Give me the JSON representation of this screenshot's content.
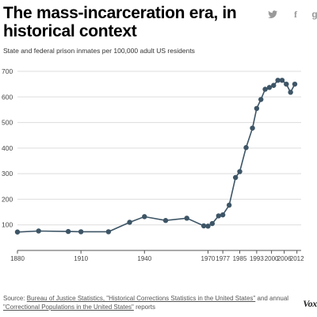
{
  "header": {
    "title": "The mass-incarceration era, in historical context",
    "subtitle": "State and federal prison inmates per 100,000 adult US residents"
  },
  "share": [
    {
      "name": "twitter-icon",
      "glyph": "twitter"
    },
    {
      "name": "facebook-icon",
      "glyph": "f"
    },
    {
      "name": "google-plus-icon",
      "glyph": "g"
    }
  ],
  "source": {
    "prefix": "Source: ",
    "link1": "Bureau of Justice Statistics, \"Historical Corrections Statistics in the United States\"",
    "middle": " and annual ",
    "link2": "\"Correctional Populations in the United States\"",
    "suffix": " reports"
  },
  "logo": "Vox",
  "colors": {
    "line": "#3d5566",
    "grid": "#dddddd",
    "axis": "#555555"
  },
  "chart_data": {
    "type": "line",
    "title": "The mass-incarceration era, in historical context",
    "subtitle": "State and federal prison inmates per 100,000 adult US residents",
    "xlabel": "",
    "ylabel": "",
    "xlim": [
      1880,
      2014
    ],
    "ylim": [
      0,
      700
    ],
    "y_ticks": [
      100,
      200,
      300,
      400,
      500,
      600,
      700
    ],
    "x_ticks": [
      "1880",
      "1910",
      "1940",
      "1970",
      "1977",
      "1985",
      "1993",
      "2000",
      "2006",
      "2012"
    ],
    "grid": true,
    "series": [
      {
        "name": "",
        "points": [
          {
            "x": 1880,
            "y": 72
          },
          {
            "x": 1890,
            "y": 76
          },
          {
            "x": 1904,
            "y": 74
          },
          {
            "x": 1910,
            "y": 73
          },
          {
            "x": 1923,
            "y": 73
          },
          {
            "x": 1933,
            "y": 110
          },
          {
            "x": 1940,
            "y": 132
          },
          {
            "x": 1950,
            "y": 117
          },
          {
            "x": 1960,
            "y": 126
          },
          {
            "x": 1968,
            "y": 96
          },
          {
            "x": 1970,
            "y": 95
          },
          {
            "x": 1972,
            "y": 105
          },
          {
            "x": 1975,
            "y": 135
          },
          {
            "x": 1977,
            "y": 139
          },
          {
            "x": 1980,
            "y": 177
          },
          {
            "x": 1983,
            "y": 285
          },
          {
            "x": 1985,
            "y": 308
          },
          {
            "x": 1988,
            "y": 402
          },
          {
            "x": 1991,
            "y": 478
          },
          {
            "x": 1993,
            "y": 555
          },
          {
            "x": 1995,
            "y": 590
          },
          {
            "x": 1997,
            "y": 630
          },
          {
            "x": 1999,
            "y": 637
          },
          {
            "x": 2001,
            "y": 645
          },
          {
            "x": 2003,
            "y": 665
          },
          {
            "x": 2005,
            "y": 665
          },
          {
            "x": 2007,
            "y": 650
          },
          {
            "x": 2009,
            "y": 618
          },
          {
            "x": 2011,
            "y": 650
          }
        ]
      }
    ]
  }
}
